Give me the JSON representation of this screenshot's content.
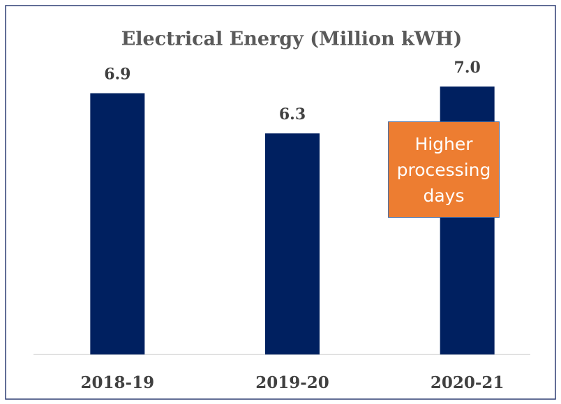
{
  "chart_data": {
    "type": "bar",
    "title": "Electrical Energy (Million kWH)",
    "categories": [
      "2018-19",
      "2019-20",
      "2020-21"
    ],
    "values": [
      6.9,
      6.3,
      7.0
    ],
    "value_labels": [
      "6.9",
      "6.3",
      "7.0"
    ],
    "color": "#002060",
    "ylim": [
      3,
      7.5
    ],
    "grid": false,
    "annotation": "Higher processing days"
  }
}
